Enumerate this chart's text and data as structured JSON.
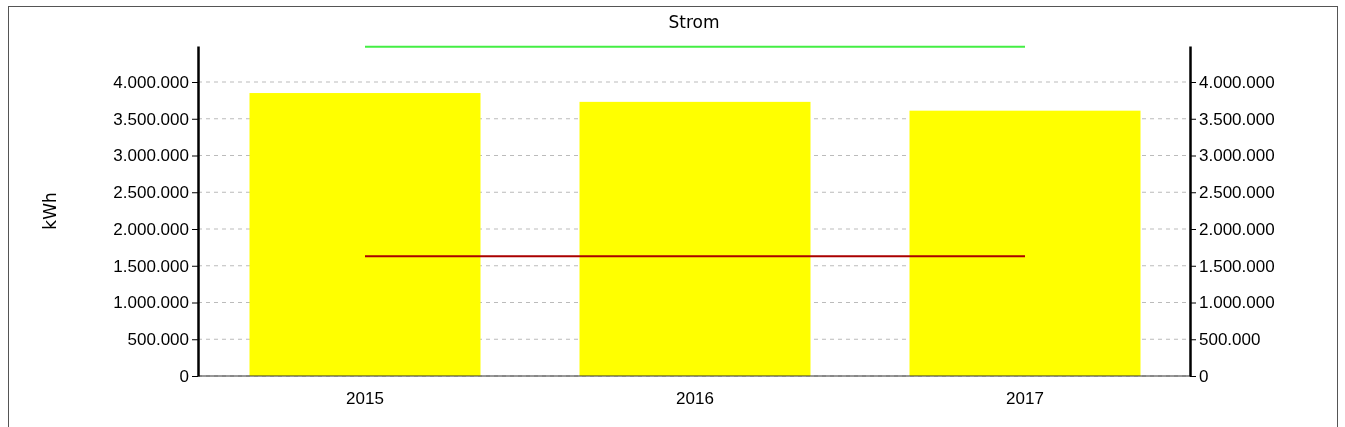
{
  "chart_data": {
    "type": "bar",
    "title": "Strom",
    "ylabel": "kWh",
    "categories": [
      "2015",
      "2016",
      "2017"
    ],
    "series": [
      {
        "color": "#ffff00",
        "values": [
          3850000,
          3730000,
          3610000
        ]
      },
      {
        "type": "line",
        "color": "#aa0000",
        "values": [
          1630000,
          1630000,
          1630000
        ]
      },
      {
        "type": "line",
        "color": "#44ee44",
        "values": [
          4480000,
          4480000,
          4480000
        ]
      }
    ],
    "ylim": [
      0,
      4490000
    ],
    "yticks": [
      {
        "value": 0,
        "label": "0"
      },
      {
        "value": 500000,
        "label": "500.000"
      },
      {
        "value": 1000000,
        "label": "1.000.000"
      },
      {
        "value": 1500000,
        "label": "1.500.000"
      },
      {
        "value": 2000000,
        "label": "2.000.000"
      },
      {
        "value": 2500000,
        "label": "2.500.000"
      },
      {
        "value": 3000000,
        "label": "3.000.000"
      },
      {
        "value": 3500000,
        "label": "3.500.000"
      },
      {
        "value": 4000000,
        "label": "4.000.000"
      }
    ],
    "y2lim": [
      0,
      4490000
    ],
    "y2ticks": [
      {
        "value": 0,
        "label": "0"
      },
      {
        "value": 500000,
        "label": "500.000"
      },
      {
        "value": 1000000,
        "label": "1.000.000"
      },
      {
        "value": 1500000,
        "label": "1.500.000"
      },
      {
        "value": 2000000,
        "label": "2.000.000"
      },
      {
        "value": 2500000,
        "label": "2.500.000"
      },
      {
        "value": 3000000,
        "label": "3.000.000"
      },
      {
        "value": 3500000,
        "label": "3.500.000"
      },
      {
        "value": 4000000,
        "label": "4.000.000"
      }
    ],
    "grid": "y"
  }
}
